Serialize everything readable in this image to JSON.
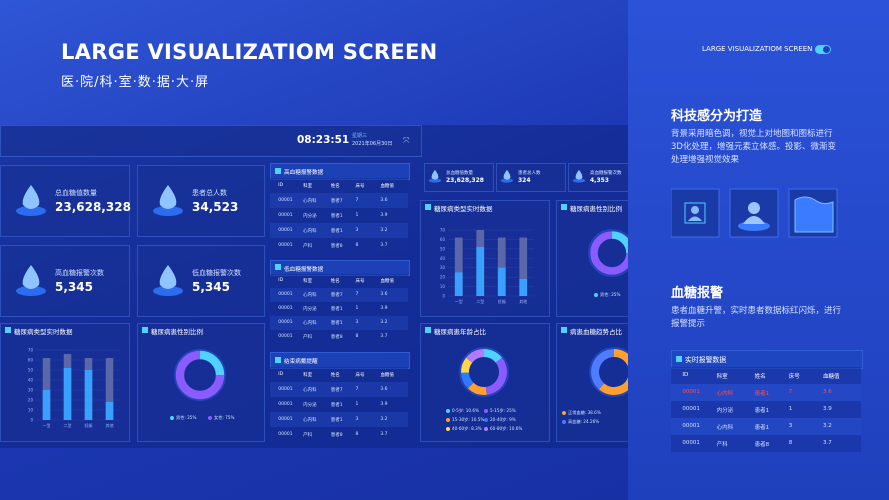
{
  "header": {
    "title": "LARGE VISUALIZATIOM SCREEN",
    "subtitle": "医·院/科·室·数·据·大·屏"
  },
  "dashboard": {
    "time": "08:23:51",
    "weekday": "星期三",
    "date": "2021年06月30日",
    "stats": [
      {
        "label": "总血糖值数量",
        "value": "23,628,328"
      },
      {
        "label": "患者总人数",
        "value": "34,523"
      },
      {
        "label": "高血糖报警次数",
        "value": "5,345"
      },
      {
        "label": "低血糖报警次数",
        "value": "5,345"
      }
    ],
    "type_chart": {
      "title": "糖尿病类型实时数据",
      "type": "bar",
      "categories": [
        "一型",
        "二型",
        "妊娠",
        "其他"
      ],
      "ylim": [
        0,
        70
      ],
      "yticks": [
        0,
        10,
        20,
        30,
        40,
        50,
        60,
        70
      ],
      "series": [
        {
          "color": "#5a67a8",
          "values": [
            62,
            66,
            62,
            62
          ]
        },
        {
          "color": "#3aa0ff",
          "values": [
            30,
            52,
            50,
            18
          ]
        }
      ]
    },
    "gender_chart": {
      "title": "糖尿病患性别比例",
      "type": "pie",
      "legend": [
        "男性: 25%",
        "女性: 75%"
      ],
      "values": [
        25,
        75
      ],
      "colors": [
        "#4fd2ff",
        "#8a5cff"
      ]
    },
    "tables": [
      {
        "title": "高血糖报警数据",
        "columns": [
          "ID",
          "科室",
          "姓名",
          "床号",
          "血糖值"
        ],
        "rows": [
          [
            "00001",
            "心内科",
            "患者7",
            7,
            3.6
          ],
          [
            "00001",
            "内分泌",
            "患者1",
            1,
            3.9
          ],
          [
            "00001",
            "心内科",
            "患者1",
            3,
            3.2
          ],
          [
            "00001",
            "产科",
            "患者8",
            8,
            3.7
          ]
        ]
      },
      {
        "title": "低血糖报警数据",
        "columns": [
          "ID",
          "科室",
          "姓名",
          "床号",
          "血糖值"
        ],
        "rows": [
          [
            "00001",
            "心内科",
            "患者7",
            7,
            3.6
          ],
          [
            "00001",
            "内分泌",
            "患者1",
            1,
            3.9
          ],
          [
            "00001",
            "心内科",
            "患者1",
            3,
            3.2
          ],
          [
            "00001",
            "产科",
            "患者8",
            8,
            3.7
          ]
        ]
      },
      {
        "title": "结束病戴提醒",
        "columns": [
          "ID",
          "科室",
          "姓名",
          "床号",
          "血糖值"
        ],
        "rows": [
          [
            "00001",
            "心内科",
            "患者7",
            7,
            3.6
          ],
          [
            "00001",
            "内分泌",
            "患者1",
            1,
            3.9
          ],
          [
            "00001",
            "心内科",
            "患者1",
            3,
            3.2
          ],
          [
            "00001",
            "产科",
            "患者8",
            8,
            3.7
          ]
        ]
      }
    ]
  },
  "dashboard2": {
    "stats": [
      {
        "label": "总血糖值数量",
        "value": "23,628,328"
      },
      {
        "label": "患者总人数",
        "value": "324"
      },
      {
        "label": "高血糖报警次数",
        "value": "4,353"
      }
    ],
    "type_chart": {
      "title": "糖尿病类型实时数据",
      "type": "bar",
      "categories": [
        "一型",
        "二型",
        "妊娠",
        "其他"
      ],
      "ylim": [
        0,
        70
      ],
      "yticks": [
        0,
        10,
        20,
        30,
        40,
        50,
        60,
        70
      ],
      "series": [
        {
          "color": "#5a67a8",
          "values": [
            62,
            70,
            62,
            62
          ]
        },
        {
          "color": "#3aa0ff",
          "values": [
            25,
            52,
            30,
            18
          ]
        }
      ]
    },
    "gender_chart": {
      "title": "糖尿病患性别比例",
      "type": "pie",
      "legend": [
        "男性: 25%",
        "女性: 75%"
      ],
      "values": [
        25,
        75
      ],
      "colors": [
        "#4fd2ff",
        "#8a5cff"
      ]
    },
    "age_chart": {
      "title": "糖尿病患年龄占比",
      "type": "pie",
      "legend": [
        "0-5岁: 10.6%",
        "5-15岁: 25%",
        "15-30岁: 10.5%",
        "20-40岁: 9%",
        "40-60岁: 8.3%",
        "60-80岁: 10.6%"
      ],
      "values": [
        10.6,
        25,
        10.5,
        9,
        8.3,
        10.6
      ],
      "colors": [
        "#4fd2ff",
        "#8a5cff",
        "#ff9f2e",
        "#2e7bff",
        "#ffd84a",
        "#b07bff"
      ]
    },
    "trend_chart": {
      "title": "病患血糖趋势占比",
      "type": "pie",
      "legend": [
        "正常血糖: 38.6%",
        "高血糖: 24.26%"
      ],
      "values": [
        38.6,
        24.26
      ],
      "colors": [
        "#ff9f2e",
        "#4f7bff"
      ]
    }
  },
  "panel": {
    "caption": "LARGE VISUALIZATIOM SCREEN",
    "section1": {
      "title": "科技感分为打造",
      "text": "背景采用暗色调，视觉上对地图和图标进行3D化处理，增强元素立体感。投影、微渐变处理增强视觉效果"
    },
    "section2": {
      "title": "血糖报警",
      "text": "患者血糖升警，实时患者数据标红闪烁，进行报警提示",
      "table": {
        "title": "实时报警数据",
        "columns": [
          "ID",
          "科室",
          "姓名",
          "床号",
          "血糖值"
        ],
        "rows": [
          [
            "00001",
            "心内科",
            "患者1",
            7,
            3.6
          ],
          [
            "00001",
            "内分泌",
            "患者1",
            1,
            3.9
          ],
          [
            "00001",
            "心内科",
            "患者1",
            3,
            3.2
          ],
          [
            "00001",
            "产科",
            "患者8",
            8,
            3.7
          ]
        ]
      }
    }
  }
}
